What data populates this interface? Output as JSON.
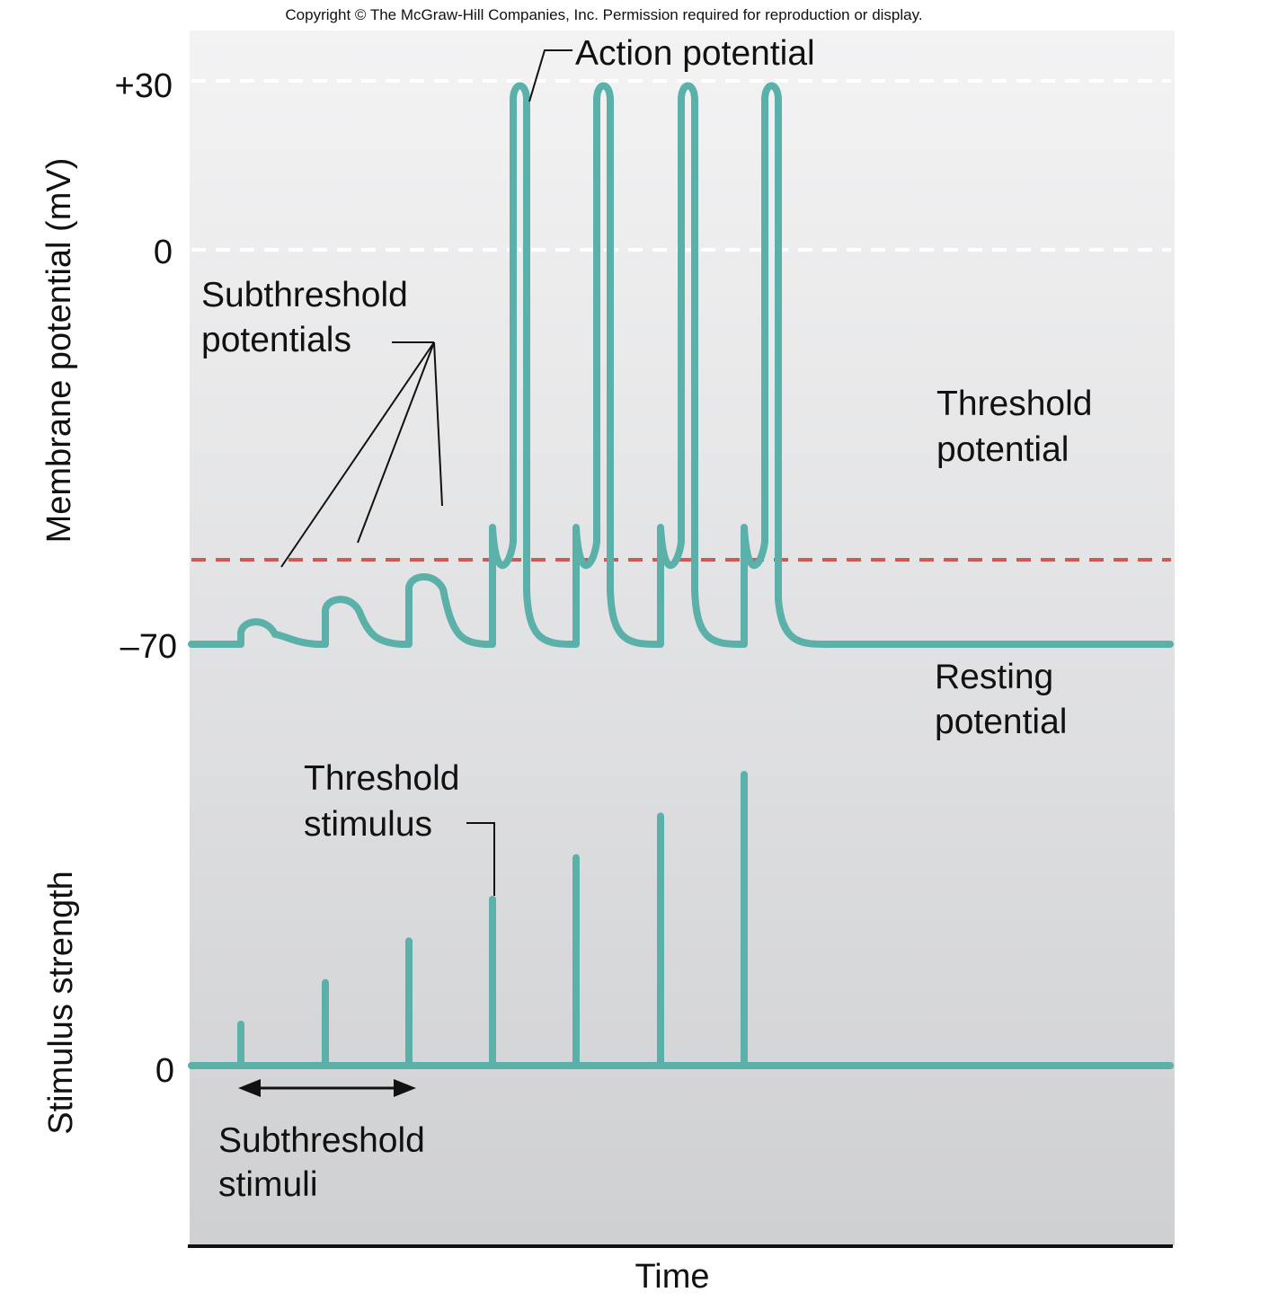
{
  "copyright": "Copyright © The McGraw-Hill Companies, Inc. Permission required for reproduction or display.",
  "chart_data": [
    {
      "type": "line",
      "ylabel": "Membrane potential (mV)",
      "yticks": [
        "+30",
        "0",
        "–70"
      ],
      "ylim": [
        -70,
        30
      ],
      "reference_lines": [
        {
          "y": 30,
          "style": "dashed",
          "color": "#ffffff"
        },
        {
          "y": 0,
          "style": "dashed",
          "color": "#ffffff"
        },
        {
          "y": -55,
          "style": "dashed",
          "color": "#cc5a55"
        }
      ],
      "threshold_mv": -55,
      "resting_mv": -70,
      "series": [
        {
          "events": [
            {
              "kind": "subthreshold",
              "peak_mv": -66
            },
            {
              "kind": "subthreshold",
              "peak_mv": -62
            },
            {
              "kind": "subthreshold",
              "peak_mv": -58
            },
            {
              "kind": "action_potential",
              "peak_mv": 29
            },
            {
              "kind": "action_potential",
              "peak_mv": 29
            },
            {
              "kind": "action_potential",
              "peak_mv": 29
            },
            {
              "kind": "action_potential",
              "peak_mv": 29
            }
          ]
        }
      ],
      "annotations": {
        "action_potential": "Action potential",
        "subthreshold_line1": "Subthreshold",
        "subthreshold_line2": "potentials",
        "threshold_line1": "Threshold",
        "threshold_line2": "potential",
        "resting_line1": "Resting",
        "resting_line2": "potential"
      }
    },
    {
      "type": "bar",
      "ylabel": "Stimulus strength",
      "yticks": [
        "0"
      ],
      "xlabel": "Time",
      "series": [
        {
          "values": [
            1,
            2,
            3,
            4,
            5,
            6,
            7
          ]
        }
      ],
      "annotations": {
        "threshold_stimulus_line1": "Threshold",
        "threshold_stimulus_line2": "stimulus",
        "subthreshold_stimuli_line1": "Subthreshold",
        "subthreshold_stimuli_line2": "stimuli"
      }
    }
  ],
  "colors": {
    "trace": "#5bb1aa",
    "threshold": "#cc5a55",
    "background_top": "#f3f3f4",
    "background_bottom": "#cfd0d2"
  }
}
